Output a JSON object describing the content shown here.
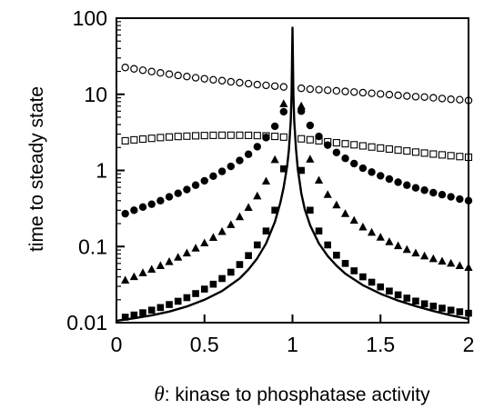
{
  "chart_data": {
    "type": "scatter",
    "title": "",
    "xlabel_symbol": "θ",
    "xlabel": ": kinase to phosphatase activity",
    "ylabel": "time to steady state",
    "yscale": "log",
    "xlim": [
      0,
      2
    ],
    "ylim": [
      0.01,
      100
    ],
    "x_ticks": [
      0,
      0.5,
      1,
      1.5,
      2
    ],
    "x_tick_labels": [
      "0",
      "0.5",
      "1",
      "1.5",
      "2"
    ],
    "y_ticks": [
      0.01,
      0.1,
      1,
      10,
      100
    ],
    "y_tick_labels": [
      "0.01",
      "0.1",
      "1",
      "10",
      "100"
    ],
    "grid": false,
    "legend": "none",
    "series": [
      {
        "marker": "open-circle",
        "x": [
          0.05,
          0.1,
          0.15,
          0.2,
          0.25,
          0.3,
          0.35,
          0.4,
          0.45,
          0.5,
          0.55,
          0.6,
          0.65,
          0.7,
          0.75,
          0.8,
          0.85,
          0.9,
          0.95,
          1.05,
          1.1,
          1.15,
          1.2,
          1.25,
          1.3,
          1.35,
          1.4,
          1.45,
          1.5,
          1.55,
          1.6,
          1.65,
          1.7,
          1.75,
          1.8,
          1.85,
          1.9,
          1.95,
          2.0
        ],
        "y": [
          22.5,
          21.6,
          20.7,
          19.9,
          19.1,
          18.4,
          17.7,
          17.1,
          16.5,
          16.0,
          15.5,
          15.1,
          14.6,
          14.2,
          13.8,
          13.4,
          13.1,
          12.8,
          12.5,
          12.0,
          11.7,
          11.5,
          11.3,
          11.1,
          10.9,
          10.7,
          10.5,
          10.3,
          10.1,
          9.9,
          9.7,
          9.5,
          9.3,
          9.2,
          9.0,
          8.8,
          8.6,
          8.5,
          8.3
        ]
      },
      {
        "marker": "open-square",
        "x": [
          0.05,
          0.1,
          0.15,
          0.2,
          0.25,
          0.3,
          0.35,
          0.4,
          0.45,
          0.5,
          0.55,
          0.6,
          0.65,
          0.7,
          0.75,
          0.8,
          0.85,
          0.9,
          0.95,
          1.05,
          1.1,
          1.15,
          1.2,
          1.25,
          1.3,
          1.35,
          1.4,
          1.45,
          1.5,
          1.55,
          1.6,
          1.65,
          1.7,
          1.75,
          1.8,
          1.85,
          1.9,
          1.95,
          2.0
        ],
        "y": [
          2.45,
          2.52,
          2.58,
          2.64,
          2.7,
          2.75,
          2.79,
          2.82,
          2.85,
          2.87,
          2.89,
          2.9,
          2.9,
          2.9,
          2.89,
          2.87,
          2.84,
          2.8,
          2.74,
          2.6,
          2.53,
          2.45,
          2.38,
          2.31,
          2.24,
          2.17,
          2.1,
          2.03,
          1.97,
          1.91,
          1.85,
          1.8,
          1.74,
          1.69,
          1.64,
          1.6,
          1.56,
          1.52,
          1.49
        ]
      },
      {
        "marker": "filled-circle",
        "x": [
          0.05,
          0.1,
          0.15,
          0.2,
          0.25,
          0.3,
          0.35,
          0.4,
          0.45,
          0.5,
          0.55,
          0.6,
          0.65,
          0.7,
          0.75,
          0.8,
          0.85,
          0.9,
          0.95,
          1.05,
          1.1,
          1.15,
          1.2,
          1.25,
          1.3,
          1.35,
          1.4,
          1.45,
          1.5,
          1.55,
          1.6,
          1.65,
          1.7,
          1.75,
          1.8,
          1.85,
          1.9,
          1.95,
          2.0
        ],
        "y": [
          0.27,
          0.3,
          0.33,
          0.36,
          0.4,
          0.45,
          0.5,
          0.56,
          0.64,
          0.73,
          0.84,
          0.97,
          1.13,
          1.35,
          1.63,
          2.05,
          2.7,
          3.8,
          5.9,
          6.0,
          3.9,
          2.8,
          2.15,
          1.72,
          1.44,
          1.23,
          1.07,
          0.95,
          0.85,
          0.77,
          0.7,
          0.64,
          0.59,
          0.55,
          0.51,
          0.48,
          0.45,
          0.42,
          0.4
        ]
      },
      {
        "marker": "filled-triangle",
        "x": [
          0.05,
          0.1,
          0.15,
          0.2,
          0.25,
          0.3,
          0.35,
          0.4,
          0.45,
          0.5,
          0.55,
          0.6,
          0.65,
          0.7,
          0.75,
          0.8,
          0.85,
          0.9,
          0.95,
          1.05,
          1.1,
          1.15,
          1.2,
          1.25,
          1.3,
          1.35,
          1.4,
          1.45,
          1.5,
          1.55,
          1.6,
          1.65,
          1.7,
          1.75,
          1.8,
          1.85,
          1.9,
          1.95,
          2.0
        ],
        "y": [
          0.036,
          0.04,
          0.045,
          0.05,
          0.056,
          0.063,
          0.072,
          0.082,
          0.095,
          0.111,
          0.131,
          0.157,
          0.193,
          0.245,
          0.325,
          0.46,
          0.72,
          1.38,
          7.5,
          7.0,
          1.4,
          0.74,
          0.48,
          0.35,
          0.27,
          0.22,
          0.18,
          0.153,
          0.132,
          0.115,
          0.102,
          0.091,
          0.082,
          0.075,
          0.069,
          0.064,
          0.06,
          0.056,
          0.053
        ]
      },
      {
        "marker": "filled-square",
        "x": [
          0.05,
          0.1,
          0.15,
          0.2,
          0.25,
          0.3,
          0.35,
          0.4,
          0.45,
          0.5,
          0.55,
          0.6,
          0.65,
          0.7,
          0.75,
          0.8,
          0.85,
          0.9,
          0.95,
          1.05,
          1.1,
          1.15,
          1.2,
          1.25,
          1.3,
          1.35,
          1.4,
          1.45,
          1.5,
          1.55,
          1.6,
          1.65,
          1.7,
          1.75,
          1.8,
          1.85,
          1.9,
          1.95,
          2.0
        ],
        "y": [
          0.0118,
          0.0126,
          0.0135,
          0.0146,
          0.0158,
          0.0173,
          0.0191,
          0.0213,
          0.0241,
          0.0276,
          0.032,
          0.038,
          0.046,
          0.058,
          0.076,
          0.105,
          0.16,
          0.3,
          1.05,
          1.0,
          0.3,
          0.16,
          0.105,
          0.077,
          0.06,
          0.048,
          0.04,
          0.034,
          0.0295,
          0.026,
          0.0232,
          0.021,
          0.0192,
          0.0177,
          0.0165,
          0.0155,
          0.0146,
          0.0139,
          0.0133
        ]
      },
      {
        "marker": "line",
        "x": [
          0.0,
          0.1,
          0.2,
          0.3,
          0.4,
          0.5,
          0.6,
          0.7,
          0.75,
          0.8,
          0.85,
          0.9,
          0.93,
          0.95,
          0.97,
          0.98,
          0.99,
          0.995,
          1.0,
          1.005,
          1.01,
          1.02,
          1.03,
          1.05,
          1.07,
          1.1,
          1.15,
          1.2,
          1.25,
          1.3,
          1.4,
          1.5,
          1.6,
          1.7,
          1.8,
          1.9,
          2.0
        ],
        "y": [
          0.0106,
          0.0114,
          0.0125,
          0.014,
          0.0163,
          0.02,
          0.026,
          0.038,
          0.05,
          0.07,
          0.11,
          0.21,
          0.37,
          0.6,
          1.15,
          1.9,
          4.5,
          10.0,
          75.0,
          10.0,
          4.5,
          1.9,
          1.05,
          0.5,
          0.31,
          0.19,
          0.11,
          0.075,
          0.056,
          0.044,
          0.031,
          0.024,
          0.0195,
          0.0165,
          0.0142,
          0.0125,
          0.0112
        ]
      }
    ]
  }
}
